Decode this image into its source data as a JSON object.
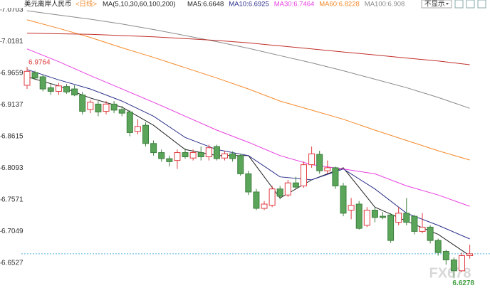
{
  "chart_data": {
    "type": "candlestick",
    "title": "美元离岸人民币",
    "subtitle": "<日线>",
    "ma_label": "MA(5,10,30,60,100,200)",
    "watermark": "FX678",
    "control": "不显示",
    "ylim": [
      6.6116,
      7.0867
    ],
    "yticks": [
      7.0703,
      7.0181,
      6.9659,
      6.9137,
      6.8615,
      6.8093,
      6.7571,
      6.7049,
      6.6527
    ],
    "up_color": "#e0393e",
    "down_color": "#5aa55a",
    "current": 6.668,
    "open": [
      6.946,
      6.967,
      6.96,
      6.942,
      6.936,
      6.944,
      6.94,
      6.93,
      6.906,
      6.915,
      6.903,
      6.915,
      6.906,
      6.902,
      6.87,
      6.88,
      6.85,
      6.835,
      6.825,
      6.822,
      6.835,
      6.826,
      6.835,
      6.828,
      6.845,
      6.826,
      6.833,
      6.83,
      6.8,
      6.77,
      6.743,
      6.748,
      6.775,
      6.765,
      6.785,
      6.78,
      6.815,
      6.832,
      6.805,
      6.81,
      6.78,
      6.74,
      6.75,
      6.715,
      6.74,
      6.73,
      6.732,
      6.72,
      6.735,
      6.73,
      6.705,
      6.712,
      6.69,
      6.672,
      6.658,
      6.64,
      6.665
    ],
    "high": [
      6.9764,
      6.97,
      6.963,
      6.948,
      6.95,
      6.948,
      6.946,
      6.935,
      6.922,
      6.92,
      6.92,
      6.92,
      6.912,
      6.905,
      6.89,
      6.885,
      6.855,
      6.84,
      6.83,
      6.84,
      6.842,
      6.84,
      6.845,
      6.848,
      6.848,
      6.838,
      6.837,
      6.833,
      6.805,
      6.775,
      6.755,
      6.78,
      6.78,
      6.79,
      6.795,
      6.82,
      6.845,
      6.838,
      6.822,
      6.812,
      6.785,
      6.76,
      6.755,
      6.745,
      6.745,
      6.737,
      6.735,
      6.745,
      6.76,
      6.732,
      6.735,
      6.715,
      6.693,
      6.675,
      6.662,
      6.67,
      6.683
    ],
    "low": [
      6.94,
      6.955,
      6.936,
      6.93,
      6.93,
      6.932,
      6.928,
      6.898,
      6.9,
      6.895,
      6.898,
      6.9,
      6.895,
      6.862,
      6.865,
      6.845,
      6.83,
      6.82,
      6.812,
      6.808,
      6.825,
      6.822,
      6.822,
      6.822,
      6.822,
      6.822,
      6.82,
      6.797,
      6.765,
      6.74,
      6.74,
      6.745,
      6.758,
      6.762,
      6.775,
      6.777,
      6.81,
      6.8,
      6.8,
      6.775,
      6.73,
      6.725,
      6.708,
      6.712,
      6.72,
      6.725,
      6.686,
      6.715,
      6.715,
      6.7,
      6.702,
      6.685,
      6.665,
      6.65,
      6.6278,
      6.638,
      6.66
    ],
    "close": [
      6.969,
      6.958,
      6.94,
      6.936,
      6.945,
      6.935,
      6.93,
      6.903,
      6.918,
      6.902,
      6.915,
      6.905,
      6.9,
      6.868,
      6.878,
      6.85,
      6.835,
      6.825,
      6.82,
      6.835,
      6.828,
      6.835,
      6.828,
      6.843,
      6.825,
      6.833,
      6.825,
      6.8,
      6.77,
      6.743,
      6.75,
      6.775,
      6.763,
      6.785,
      6.778,
      6.815,
      6.833,
      6.805,
      6.81,
      6.78,
      6.735,
      6.748,
      6.71,
      6.74,
      6.728,
      6.728,
      6.69,
      6.735,
      6.72,
      6.705,
      6.712,
      6.69,
      6.67,
      6.658,
      6.64,
      6.665,
      6.668
    ],
    "lines": [
      {
        "name": "MA5:6.6648",
        "color": "#222222",
        "x": [
          0,
          4,
          8,
          12,
          16,
          20,
          24,
          28,
          32,
          36,
          40,
          44,
          48,
          52,
          56
        ],
        "values": [
          6.96,
          6.945,
          6.925,
          6.91,
          6.88,
          6.84,
          6.83,
          6.83,
          6.76,
          6.79,
          6.81,
          6.745,
          6.722,
          6.7,
          6.6648
        ]
      },
      {
        "name": "MA10:6.6925",
        "color": "#2a2f8a",
        "x": [
          0,
          4,
          8,
          12,
          16,
          20,
          24,
          28,
          32,
          36,
          40,
          44,
          48,
          52,
          56
        ],
        "values": [
          6.972,
          6.955,
          6.94,
          6.92,
          6.895,
          6.86,
          6.84,
          6.83,
          6.795,
          6.79,
          6.808,
          6.775,
          6.735,
          6.715,
          6.6925
        ]
      },
      {
        "name": "MA30:6.7464",
        "color": "#e83ee0",
        "x": [
          0,
          4,
          8,
          12,
          16,
          20,
          24,
          28,
          32,
          36,
          40,
          44,
          48,
          52,
          56
        ],
        "values": [
          7.006,
          6.985,
          6.962,
          6.94,
          6.918,
          6.895,
          6.872,
          6.852,
          6.83,
          6.815,
          6.808,
          6.8,
          6.78,
          6.765,
          6.7464
        ]
      },
      {
        "name": "MA60:6.8228",
        "color": "#f5892a",
        "x": [
          0,
          4,
          8,
          12,
          16,
          20,
          24,
          28,
          32,
          36,
          40,
          44,
          48,
          52,
          56
        ],
        "values": [
          7.054,
          7.04,
          7.025,
          7.008,
          6.992,
          6.975,
          6.958,
          6.94,
          6.92,
          6.905,
          6.89,
          6.872,
          6.855,
          6.838,
          6.8228
        ]
      },
      {
        "name": "MA100:6.908",
        "color": "#8a8a8a",
        "x": [
          0,
          4,
          8,
          12,
          16,
          20,
          24,
          28,
          32,
          36,
          40,
          44,
          48,
          52,
          56
        ],
        "values": [
          7.069,
          7.062,
          7.055,
          7.047,
          7.038,
          7.028,
          7.018,
          7.007,
          6.995,
          6.983,
          6.97,
          6.956,
          6.942,
          6.926,
          6.908
        ]
      },
      {
        "color": "#c0302a",
        "x": [
          0,
          4,
          8,
          12,
          16,
          20,
          24,
          28,
          32,
          36,
          40,
          44,
          48,
          52,
          56
        ],
        "values": [
          7.032,
          7.031,
          7.03,
          7.028,
          7.026,
          7.023,
          7.02,
          7.016,
          7.011,
          7.006,
          7.001,
          6.996,
          6.991,
          6.986,
          6.98
        ]
      }
    ]
  }
}
